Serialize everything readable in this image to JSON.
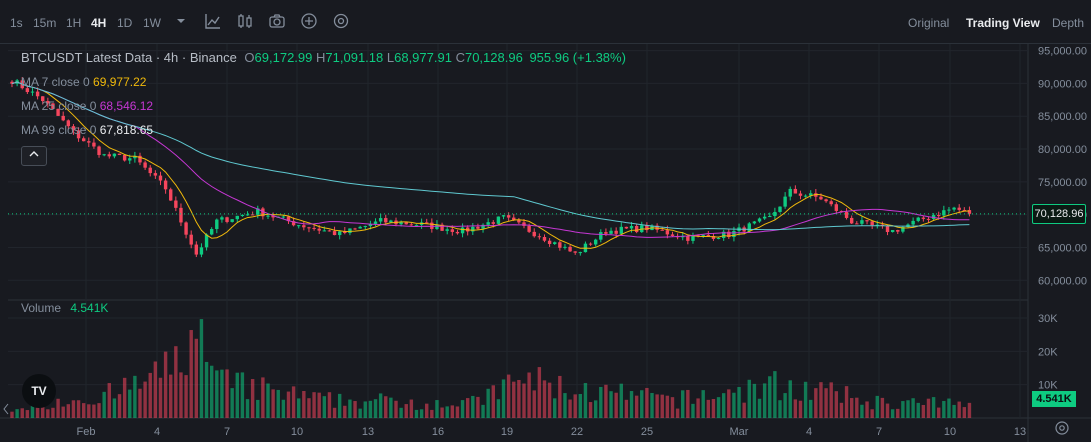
{
  "toolbar": {
    "timeframes": [
      "1s",
      "15m",
      "1H",
      "4H",
      "1D",
      "1W"
    ],
    "active_timeframe": "4H",
    "icons": [
      "chevron-down-icon",
      "indicators-icon",
      "chart-style-icon",
      "camera-icon",
      "plus-circle-icon",
      "settings-icon"
    ],
    "views": [
      "Original",
      "Trading View",
      "Depth"
    ],
    "active_view": "Trading View"
  },
  "legend": {
    "symbol": "BTCUSDT Latest Data · 4h · Binance",
    "open_label": "O",
    "open": "69,172.99",
    "high_label": "H",
    "high": "71,091.18",
    "low_label": "L",
    "low": "68,977.91",
    "close_label": "C",
    "close": "70,128.96",
    "change": "955.96 (+1.38%)",
    "ma": [
      {
        "label": "MA 7 close 0",
        "value": "69,977.22",
        "color": "#f0b90b"
      },
      {
        "label": "MA 25 close 0",
        "value": "68,546.12",
        "color": "#c637d4"
      },
      {
        "label": "MA 99 close 0",
        "value": "67,818.65",
        "color": "#5fc8d0"
      }
    ],
    "volume_label": "Volume",
    "volume_value": "4.541K"
  },
  "price_badge": "70,128.96",
  "volume_badge": "4.541K",
  "logo_text": "TV",
  "chart_data": {
    "type": "candlestick",
    "price_axis": {
      "ticks": [
        95000,
        90000,
        85000,
        80000,
        75000,
        70000,
        65000,
        60000
      ],
      "tick_labels": [
        "95,000.00",
        "90,000.00",
        "85,000.00",
        "80,000.00",
        "75,000.00",
        "70,000.00",
        "65,000.00",
        "60,000.00"
      ]
    },
    "volume_axis": {
      "ticks": [
        30000,
        20000,
        10000
      ],
      "tick_labels": [
        "30K",
        "20K",
        "10K"
      ]
    },
    "x_axis": {
      "tick_labels": [
        "Feb",
        "4",
        "7",
        "10",
        "13",
        "16",
        "19",
        "22",
        "25",
        "Mar",
        "4",
        "7",
        "10",
        "13"
      ]
    },
    "close_price": 70128.96,
    "price_anchors": [
      [
        0,
        90500
      ],
      [
        6,
        87500
      ],
      [
        12,
        82500
      ],
      [
        18,
        79000
      ],
      [
        24,
        78500
      ],
      [
        30,
        74000
      ],
      [
        36,
        64000
      ],
      [
        40,
        69000
      ],
      [
        48,
        70500
      ],
      [
        56,
        68500
      ],
      [
        64,
        67000
      ],
      [
        72,
        69000
      ],
      [
        80,
        68500
      ],
      [
        88,
        67500
      ],
      [
        96,
        69500
      ],
      [
        104,
        66500
      ],
      [
        110,
        64000
      ],
      [
        116,
        67500
      ],
      [
        124,
        68000
      ],
      [
        132,
        66500
      ],
      [
        140,
        67000
      ],
      [
        148,
        69500
      ],
      [
        152,
        73500
      ],
      [
        158,
        72500
      ],
      [
        164,
        69000
      ],
      [
        172,
        67500
      ],
      [
        180,
        70000
      ],
      [
        184,
        71000
      ],
      [
        187,
        70129
      ]
    ],
    "volume_anchors": [
      [
        0,
        4000
      ],
      [
        20,
        8000
      ],
      [
        30,
        15000
      ],
      [
        36,
        28000
      ],
      [
        40,
        12000
      ],
      [
        60,
        6000
      ],
      [
        90,
        5000
      ],
      [
        100,
        13000
      ],
      [
        110,
        9000
      ],
      [
        130,
        6000
      ],
      [
        150,
        11000
      ],
      [
        170,
        5000
      ],
      [
        187,
        4541
      ]
    ],
    "grid": true
  }
}
